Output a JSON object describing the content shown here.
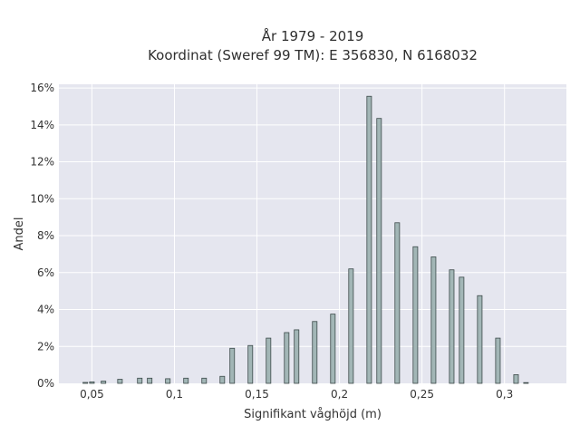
{
  "chart_data": {
    "type": "bar",
    "title_line1": "År 1979 - 2019",
    "title_line2": "Koordinat (Sweref 99 TM): E 356830, N 6168032",
    "xlabel": "Signifikant våghöjd (m)",
    "ylabel": "Andel",
    "xlim": [
      0.03,
      0.3375
    ],
    "ylim": [
      0,
      16.2
    ],
    "x_ticks": [
      {
        "value": 0.05,
        "label": "0,05"
      },
      {
        "value": 0.1,
        "label": "0,1"
      },
      {
        "value": 0.15,
        "label": "0,15"
      },
      {
        "value": 0.2,
        "label": "0,2"
      },
      {
        "value": 0.25,
        "label": "0,25"
      },
      {
        "value": 0.3,
        "label": "0,3"
      }
    ],
    "y_ticks": [
      {
        "value": 0,
        "label": "0%"
      },
      {
        "value": 2,
        "label": "2%"
      },
      {
        "value": 4,
        "label": "4%"
      },
      {
        "value": 6,
        "label": "6%"
      },
      {
        "value": 8,
        "label": "8%"
      },
      {
        "value": 10,
        "label": "10%"
      },
      {
        "value": 12,
        "label": "12%"
      },
      {
        "value": 14,
        "label": "14%"
      },
      {
        "value": 16,
        "label": "16%"
      }
    ],
    "grid": true,
    "bar_width": 0.0028,
    "points": [
      {
        "x": 0.046,
        "y": 0.05
      },
      {
        "x": 0.05,
        "y": 0.08
      },
      {
        "x": 0.057,
        "y": 0.12
      },
      {
        "x": 0.067,
        "y": 0.22
      },
      {
        "x": 0.079,
        "y": 0.28
      },
      {
        "x": 0.085,
        "y": 0.28
      },
      {
        "x": 0.096,
        "y": 0.25
      },
      {
        "x": 0.107,
        "y": 0.28
      },
      {
        "x": 0.118,
        "y": 0.28
      },
      {
        "x": 0.129,
        "y": 0.38
      },
      {
        "x": 0.135,
        "y": 1.9
      },
      {
        "x": 0.146,
        "y": 2.05
      },
      {
        "x": 0.157,
        "y": 2.45
      },
      {
        "x": 0.168,
        "y": 2.75
      },
      {
        "x": 0.174,
        "y": 2.9
      },
      {
        "x": 0.185,
        "y": 3.35
      },
      {
        "x": 0.196,
        "y": 3.75
      },
      {
        "x": 0.207,
        "y": 6.2
      },
      {
        "x": 0.218,
        "y": 15.55
      },
      {
        "x": 0.224,
        "y": 14.35
      },
      {
        "x": 0.235,
        "y": 8.7
      },
      {
        "x": 0.246,
        "y": 7.4
      },
      {
        "x": 0.257,
        "y": 6.85
      },
      {
        "x": 0.268,
        "y": 6.15
      },
      {
        "x": 0.274,
        "y": 5.75
      },
      {
        "x": 0.285,
        "y": 4.75
      },
      {
        "x": 0.296,
        "y": 2.45
      },
      {
        "x": 0.307,
        "y": 0.47
      },
      {
        "x": 0.313,
        "y": 0.04
      }
    ],
    "colors": {
      "plot_bg": "#e5e6ef",
      "grid": "#ffffff",
      "bar_fill": "#a2b6b6",
      "bar_stroke": "#3c4a4a"
    }
  }
}
